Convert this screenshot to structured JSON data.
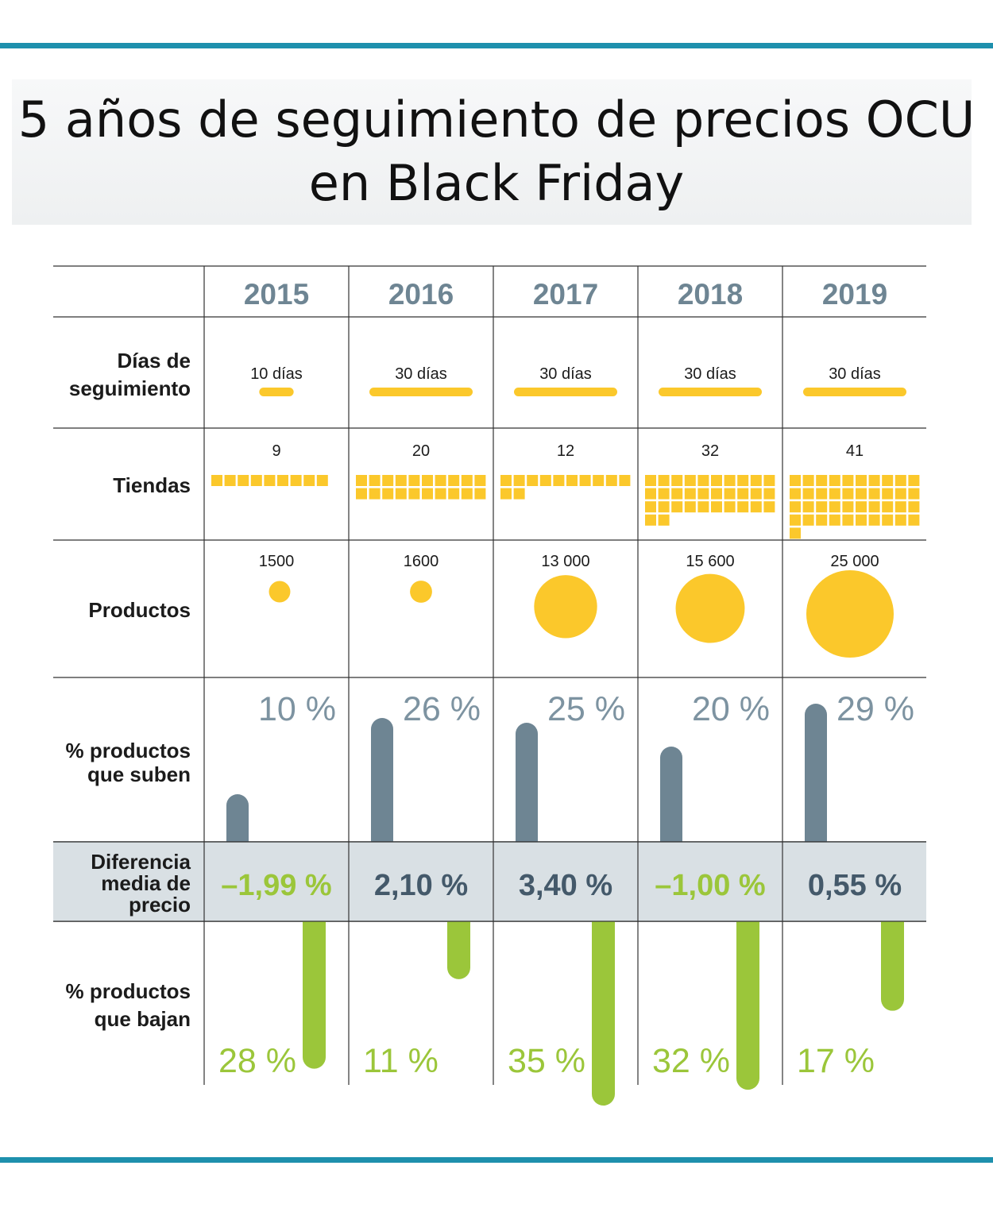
{
  "title_line1": "5 años de seguimiento de precios OCU",
  "title_line2": "en Black Friday",
  "row_labels": {
    "dias": [
      "Días de",
      "seguimiento"
    ],
    "tiendas": [
      "Tiendas"
    ],
    "productos": [
      "Productos"
    ],
    "suben": [
      "% productos",
      "que suben"
    ],
    "diferencia": [
      "Diferencia",
      "media de",
      "precio"
    ],
    "bajan": [
      "% productos",
      "que bajan"
    ]
  },
  "colors": {
    "accent_rule": "#1e90ad",
    "yellow": "#fbc82b",
    "slate": "#6e8593",
    "green": "#9bc63a",
    "diff_band": "#d9e0e4",
    "diff_positive": "#44596a"
  },
  "chart_data": {
    "type": "table",
    "categories": [
      "2015",
      "2016",
      "2017",
      "2018",
      "2019"
    ],
    "dias_seguimiento": {
      "values": [
        10,
        30,
        30,
        30,
        30
      ],
      "labels": [
        "10 días",
        "30 días",
        "30 días",
        "30 días",
        "30 días"
      ]
    },
    "tiendas": {
      "values": [
        9,
        20,
        12,
        32,
        41
      ],
      "labels": [
        "9",
        "20",
        "12",
        "32",
        "41"
      ]
    },
    "productos": {
      "values": [
        1500,
        1600,
        13000,
        15600,
        25000
      ],
      "labels": [
        "1500",
        "1600",
        "13 000",
        "15 600",
        "25 000"
      ]
    },
    "pct_suben": {
      "values": [
        10,
        26,
        25,
        20,
        29
      ],
      "labels": [
        "10 %",
        "26 %",
        "25 %",
        "20 %",
        "29 %"
      ]
    },
    "diferencia_media": {
      "values": [
        -1.99,
        2.1,
        3.4,
        -1.0,
        0.55
      ],
      "labels": [
        "–1,99 %",
        "2,10 %",
        "3,40 %",
        "–1,00 %",
        "0,55 %"
      ]
    },
    "pct_bajan": {
      "values": [
        28,
        11,
        35,
        32,
        17
      ],
      "labels": [
        "28 %",
        "11 %",
        "35 %",
        "32 %",
        "17 %"
      ]
    }
  }
}
